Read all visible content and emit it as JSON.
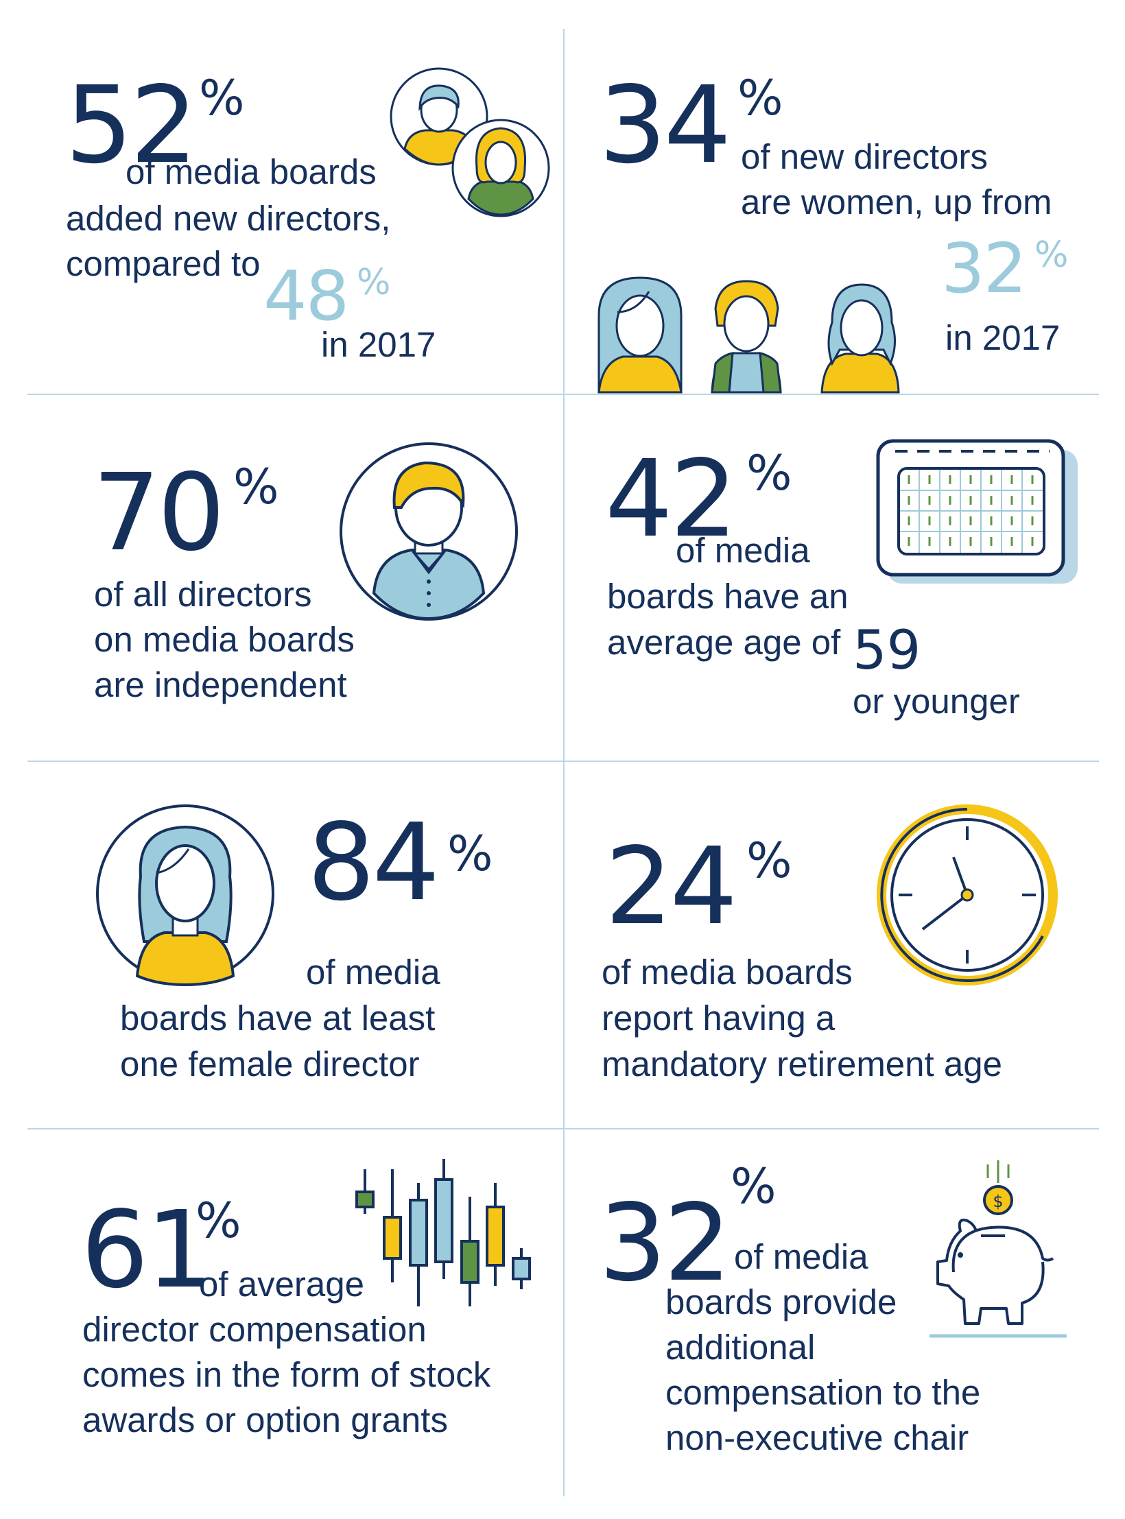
{
  "colors": {
    "navy": "#16305c",
    "light_blue": "#9ccbdc",
    "yellow": "#f5c518",
    "green": "#5e9443",
    "divider": "#b9d7e6"
  },
  "stats": [
    {
      "value": "52",
      "symbol": "%",
      "lines": [
        "of media boards",
        "added new directors,",
        "compared to"
      ],
      "compare_value": "48",
      "compare_symbol": "%",
      "compare_suffix": "in 2017",
      "icon": "two-directors-icon"
    },
    {
      "value": "34",
      "symbol": "%",
      "lines": [
        "of new directors",
        "are women, up from"
      ],
      "compare_value": "32",
      "compare_symbol": "%",
      "compare_suffix": "in 2017",
      "icon": "three-women-icon"
    },
    {
      "value": "70",
      "symbol": "%",
      "lines": [
        "of all directors",
        "on media boards",
        "are independent"
      ],
      "icon": "independent-director-icon"
    },
    {
      "value": "42",
      "symbol": "%",
      "lines": [
        "of media",
        "boards have an",
        "average age of"
      ],
      "age_value": "59",
      "age_suffix": "or younger",
      "icon": "calendar-icon"
    },
    {
      "value": "84",
      "symbol": "%",
      "lines": [
        "of media",
        "boards have at least",
        "one female director"
      ],
      "icon": "female-director-icon"
    },
    {
      "value": "24",
      "symbol": "%",
      "lines": [
        "of media boards",
        "report having a",
        "mandatory retirement age"
      ],
      "icon": "clock-icon"
    },
    {
      "value": "61",
      "symbol": "%",
      "lines": [
        "of average",
        "director compensation",
        "comes in the form of stock",
        "awards or option grants"
      ],
      "icon": "candlestick-chart-icon"
    },
    {
      "value": "32",
      "symbol": "%",
      "lines": [
        "of media",
        "boards provide",
        "additional",
        "compensation to the",
        "non-executive chair"
      ],
      "icon": "piggy-bank-icon",
      "coin_symbol": "$"
    }
  ]
}
